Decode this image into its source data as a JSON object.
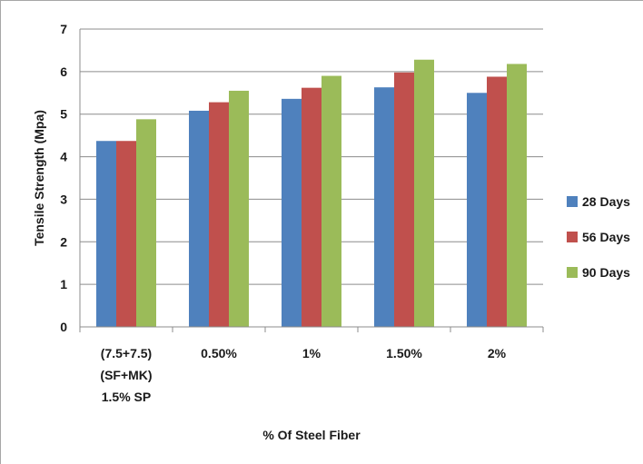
{
  "chart_data": {
    "type": "bar",
    "categories": [
      [
        "(7.5+7.5)",
        "(SF+MK)",
        "1.5% SP"
      ],
      [
        "0.50%"
      ],
      [
        "1%"
      ],
      [
        "1.50%"
      ],
      [
        "2%"
      ]
    ],
    "series": [
      {
        "name": "28 Days",
        "color": "#4f81bd",
        "values": [
          4.37,
          5.08,
          5.36,
          5.63,
          5.5
        ]
      },
      {
        "name": "56 Days",
        "color": "#c0504d",
        "values": [
          4.37,
          5.28,
          5.62,
          5.98,
          5.88
        ]
      },
      {
        "name": "90 Days",
        "color": "#9bbb59",
        "values": [
          4.88,
          5.55,
          5.9,
          6.28,
          6.18
        ]
      }
    ],
    "title": "",
    "xlabel": "% Of Steel Fiber",
    "ylabel": "Tensile Strength (Mpa)",
    "ylim": [
      0,
      7
    ],
    "yticks": [
      0,
      1,
      2,
      3,
      4,
      5,
      6,
      7
    ],
    "grid": true,
    "legend_position": "right"
  }
}
